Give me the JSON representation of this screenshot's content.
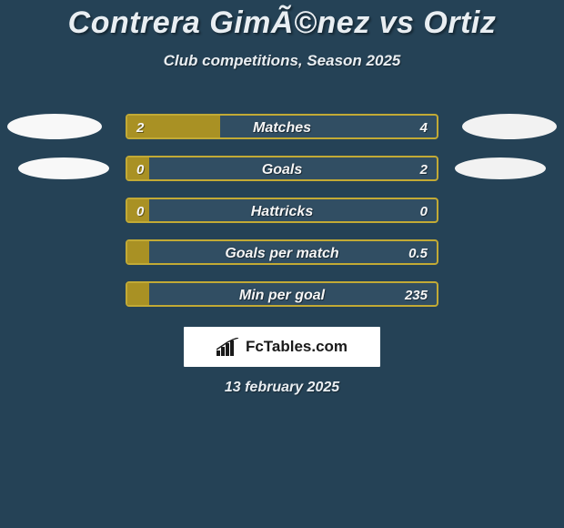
{
  "title": "Contrera GimÃ©nez vs Ortiz",
  "subtitle": "Club competitions, Season 2025",
  "date": "13 february 2025",
  "brand": "FcTables.com",
  "colors": {
    "background": "#254256",
    "blob": "#f8f8f8",
    "blob_alt": "#f2f2f2"
  },
  "bars": {
    "track_color": "#314e63",
    "left_fill_color": "#a99124",
    "border_color": "#c2aa35",
    "label_fontsize": 16,
    "value_fontsize": 15,
    "height": 28,
    "track_width": 344
  },
  "rows": [
    {
      "label": "Matches",
      "left_value": "2",
      "right_value": "4",
      "left_fill_pct": 30,
      "left_blob": true,
      "right_blob": true,
      "blob_indent": false
    },
    {
      "label": "Goals",
      "left_value": "0",
      "right_value": "2",
      "left_fill_pct": 7,
      "left_blob": true,
      "right_blob": true,
      "blob_indent": true
    },
    {
      "label": "Hattricks",
      "left_value": "0",
      "right_value": "0",
      "left_fill_pct": 7,
      "left_blob": false,
      "right_blob": false
    },
    {
      "label": "Goals per match",
      "left_value": "",
      "right_value": "0.5",
      "left_fill_pct": 7,
      "left_blob": false,
      "right_blob": false
    },
    {
      "label": "Min per goal",
      "left_value": "",
      "right_value": "235",
      "left_fill_pct": 7,
      "left_blob": false,
      "right_blob": false
    }
  ]
}
